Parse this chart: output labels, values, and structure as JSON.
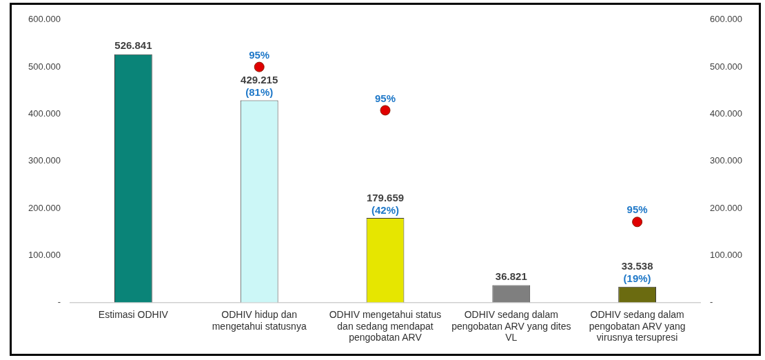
{
  "chart_data": {
    "type": "bar",
    "categories": [
      "Estimasi ODHIV",
      "ODHIV hidup dan mengetahui statusnya",
      "ODHIV mengetahui status dan sedang mendapat pengobatan ARV",
      "ODHIV sedang dalam pengobatan ARV yang dites VL",
      "ODHIV sedang dalam pengobatan ARV yang virusnya tersupresi"
    ],
    "series": [
      {
        "colors": [
          "#0a8478",
          "#ccf7f7",
          "#e6e600",
          "#7f7f7f",
          "#6b6b10"
        ],
        "values": [
          526841,
          429215,
          179659,
          36821,
          33538
        ],
        "value_labels": [
          "526.841",
          "429.215",
          "179.659",
          "36.821",
          "33.538"
        ]
      },
      {
        "type": "scatter",
        "color": "#e00000",
        "x": [
          "ODHIV hidup dan mengetahui statusnya",
          "ODHIV mengetahui status dan sedang mendapat pengobatan ARV",
          "ODHIV sedang dalam pengobatan ARV yang virusnya tersupresi"
        ],
        "values": [
          500000,
          408000,
          171000
        ]
      }
    ],
    "annotations": [
      {
        "text": "95%",
        "x": "ODHIV hidup dan mengetahui statusnya",
        "y": 500000
      },
      {
        "text": "95%",
        "x": "ODHIV mengetahui status dan sedang mendapat pengobatan ARV",
        "y": 408000
      },
      {
        "text": "95%",
        "x": "ODHIV sedang dalam pengobatan ARV yang virusnya tersupresi",
        "y": 171000
      },
      {
        "text": "(81%)",
        "x": "ODHIV hidup dan mengetahui statusnya",
        "y": 429215
      },
      {
        "text": "(42%)",
        "x": "ODHIV mengetahui status dan sedang mendapat pengobatan ARV",
        "y": 179659
      },
      {
        "text": "(19%)",
        "x": "ODHIV sedang dalam pengobatan ARV yang virusnya tersupresi",
        "y": 33538
      }
    ],
    "marker": "circle",
    "grid": false,
    "legend": false,
    "ylim": [
      0,
      600000
    ],
    "yticks": [
      {
        "value": 0,
        "label": "-"
      },
      {
        "value": 100000,
        "label": "100.000"
      },
      {
        "value": 200000,
        "label": "200.000"
      },
      {
        "value": 300000,
        "label": "300.000"
      },
      {
        "value": 400000,
        "label": "400.000"
      },
      {
        "value": 500000,
        "label": "500.000"
      },
      {
        "value": 600000,
        "label": "600.000"
      }
    ],
    "y2lim": [
      0,
      600000
    ],
    "y2ticks": [
      {
        "value": 0,
        "label": "-"
      },
      {
        "value": 100000,
        "label": "100.000"
      },
      {
        "value": 200000,
        "label": "200.000"
      },
      {
        "value": 300000,
        "label": "300.000"
      },
      {
        "value": 400000,
        "label": "400.000"
      },
      {
        "value": 500000,
        "label": "500.000"
      },
      {
        "value": 600000,
        "label": "600.000"
      }
    ]
  }
}
